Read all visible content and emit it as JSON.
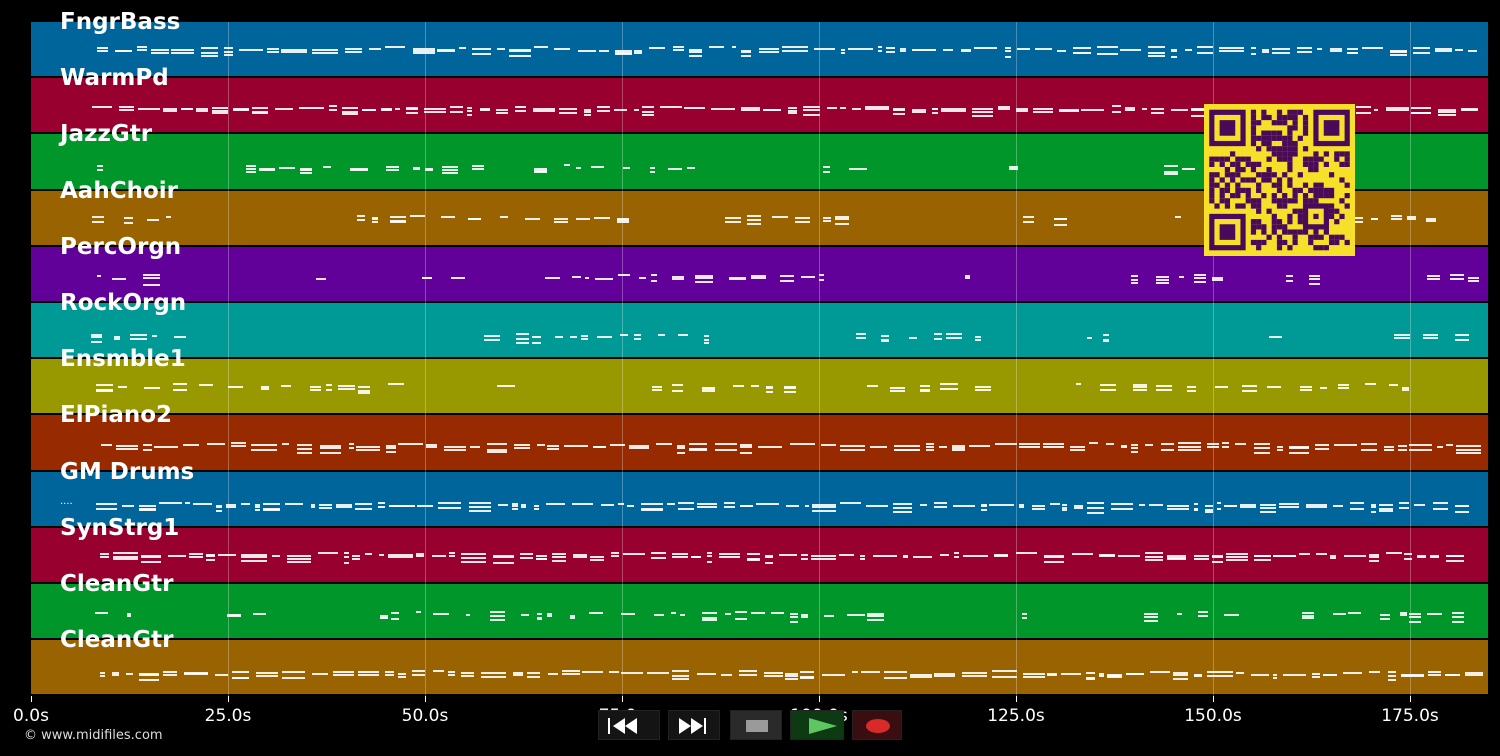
{
  "tracks": [
    {
      "label": "FngrBass",
      "color": "#00659a"
    },
    {
      "label": "WarmPd",
      "color": "#98002f"
    },
    {
      "label": "JazzGtr",
      "color": "#00962a"
    },
    {
      "label": "AahChoir",
      "color": "#986300"
    },
    {
      "label": "PercOrgn",
      "color": "#62009a"
    },
    {
      "label": "RockOrgn",
      "color": "#009a96"
    },
    {
      "label": "Ensmble1",
      "color": "#989800"
    },
    {
      "label": "ElPiano2",
      "color": "#982a00"
    },
    {
      "label": "GM Drums",
      "color": "#00659a"
    },
    {
      "label": "SynStrg1",
      "color": "#98002f"
    },
    {
      "label": "CleanGtr",
      "color": "#00962a"
    },
    {
      "label": "CleanGtr",
      "color": "#986300"
    }
  ],
  "timeline": {
    "ticks": [
      "0.0s",
      "25.0s",
      "50.0s",
      "75.0s",
      "100.0s",
      "125.0s",
      "150.0s",
      "175.0s"
    ],
    "tick_seconds": [
      0,
      25,
      50,
      75,
      100,
      125,
      150,
      175
    ],
    "max_seconds": 184
  },
  "drums_marker": "....",
  "copyright": "© www.midifiles.com",
  "transport": {
    "rewind": {
      "icon": "rewind-icon",
      "label": "◀◀"
    },
    "fast_forward": {
      "icon": "fast-forward-icon",
      "label": "▶▶"
    },
    "stop": {
      "icon": "stop-icon"
    },
    "play": {
      "icon": "play-icon"
    },
    "record": {
      "icon": "record-icon"
    }
  },
  "qr_code": {
    "icon": "qr-code-icon",
    "fg": "#4a0a5a",
    "bg": "#f7e02a"
  }
}
